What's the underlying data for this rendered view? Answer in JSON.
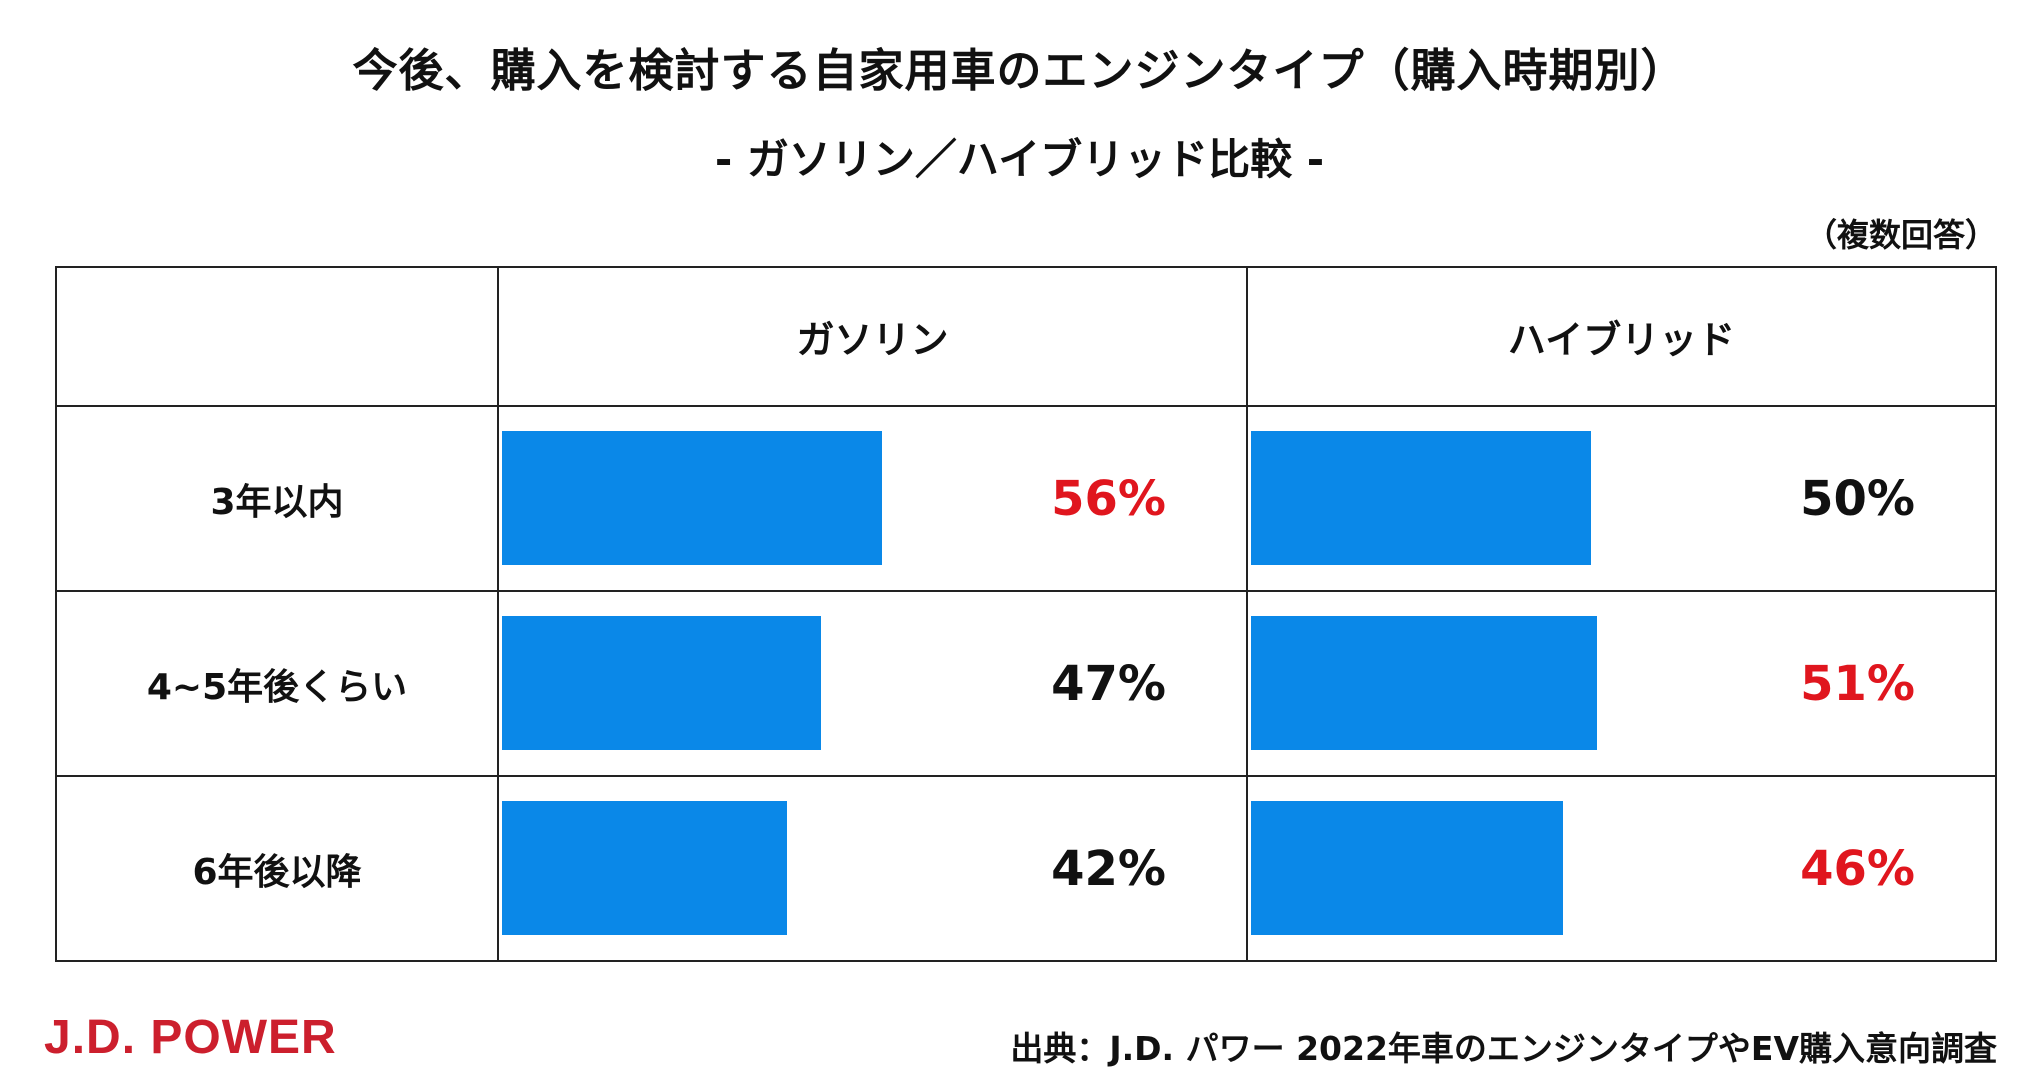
{
  "title": "今後、購入を検討する自家用車のエンジンタイプ（購入時期別）",
  "subtitle": "- ガソリン／ハイブリッド比較 -",
  "note": "（複数回答）",
  "source": "出典：J.D. パワー 2022年車のエンジンタイプやEV購入意向調査",
  "logo_text": "J.D. POWER",
  "colors": {
    "bar": "#0a88e8",
    "highlight": "#e0161e",
    "normal": "#111111",
    "logo": "#cc1f2d"
  },
  "chart_data": {
    "type": "bar",
    "orientation": "horizontal",
    "title": "今後、購入を検討する自家用車のエンジンタイプ（購入時期別）",
    "subtitle": "- ガソリン／ハイブリッド比較 -",
    "categories": [
      "3年以内",
      "4~5年後くらい",
      "6年後以降"
    ],
    "series": [
      {
        "name": "ガソリン",
        "values": [
          56,
          47,
          42
        ],
        "labels": [
          "56%",
          "47%",
          "42%"
        ],
        "highlight": [
          true,
          false,
          false
        ]
      },
      {
        "name": "ハイブリッド",
        "values": [
          50,
          51,
          46
        ],
        "labels": [
          "50%",
          "51%",
          "46%"
        ],
        "highlight": [
          false,
          true,
          true
        ]
      }
    ],
    "unit": "%",
    "xlim": [
      0,
      100
    ]
  }
}
